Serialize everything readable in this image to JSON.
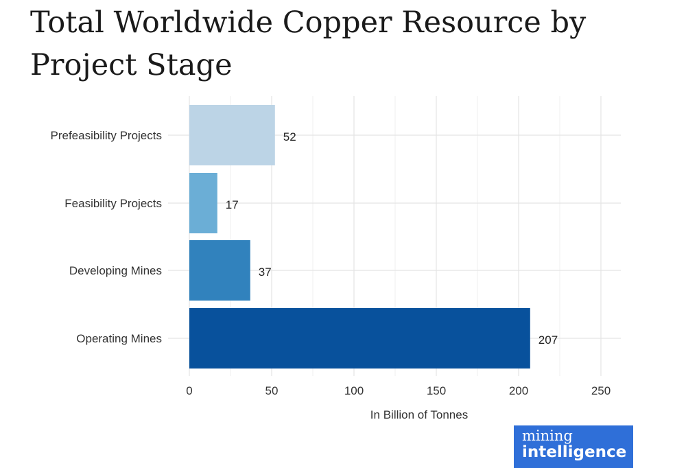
{
  "chart_data": {
    "type": "bar",
    "orientation": "horizontal",
    "title": "Total Worldwide Copper Resource by Project Stage",
    "categories": [
      "Prefeasibility Projects",
      "Feasibility Projects",
      "Developing Mines",
      "Operating Mines"
    ],
    "values": [
      52,
      17,
      37,
      207
    ],
    "data_labels": [
      "52",
      "17",
      "37",
      "207"
    ],
    "colors": [
      "#bcd4e6",
      "#6baed6",
      "#3182bd",
      "#08519c"
    ],
    "xlabel": "In Billion of Tonnes",
    "ylabel": "",
    "xlim": [
      0,
      250
    ],
    "xticks": [
      0,
      50,
      100,
      150,
      200,
      250
    ],
    "xtick_labels": [
      "0",
      "50",
      "100",
      "150",
      "200",
      "250"
    ],
    "grid": true
  },
  "logo": {
    "line1": "mining",
    "line2": "intelligence",
    "background": "#2f6fd8"
  }
}
